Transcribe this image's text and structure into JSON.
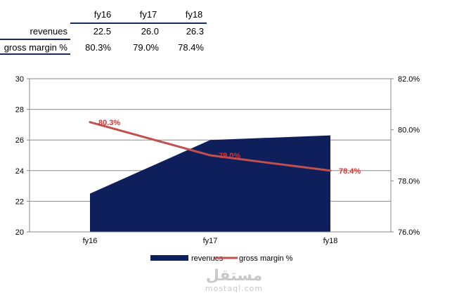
{
  "table": {
    "columns": [
      "fy16",
      "fy17",
      "fy18"
    ],
    "rows": [
      {
        "label": "revenues",
        "values": [
          "22.5",
          "26.0",
          "26.3"
        ]
      },
      {
        "label": "gross margin %",
        "values": [
          "80.3%",
          "79.0%",
          "78.4%"
        ]
      }
    ]
  },
  "chart_data": {
    "type": "area",
    "categories": [
      "fy16",
      "fy17",
      "fy18"
    ],
    "series": [
      {
        "name": "revenues",
        "type": "area",
        "axis": "left",
        "values": [
          22.5,
          26.0,
          26.3
        ],
        "color": "#0f1f5c"
      },
      {
        "name": "gross margin %",
        "type": "line",
        "axis": "right",
        "values": [
          80.3,
          79.0,
          78.4
        ],
        "color": "#c0504d"
      }
    ],
    "data_labels": [
      "80.3%",
      "79.0%",
      "78.4%"
    ],
    "data_label_color": "#e03030",
    "y_left": {
      "min": 20,
      "max": 30,
      "step": 2,
      "ticks": [
        "20",
        "22",
        "24",
        "26",
        "28",
        "30"
      ]
    },
    "y_right": {
      "min": 76,
      "max": 82,
      "step": 2,
      "ticks": [
        "76.0%",
        "78.0%",
        "80.0%",
        "82.0%"
      ]
    },
    "grid": true,
    "legend_position": "bottom"
  },
  "watermark": {
    "arabic": "مستقل",
    "latin": "mostaql.com"
  }
}
